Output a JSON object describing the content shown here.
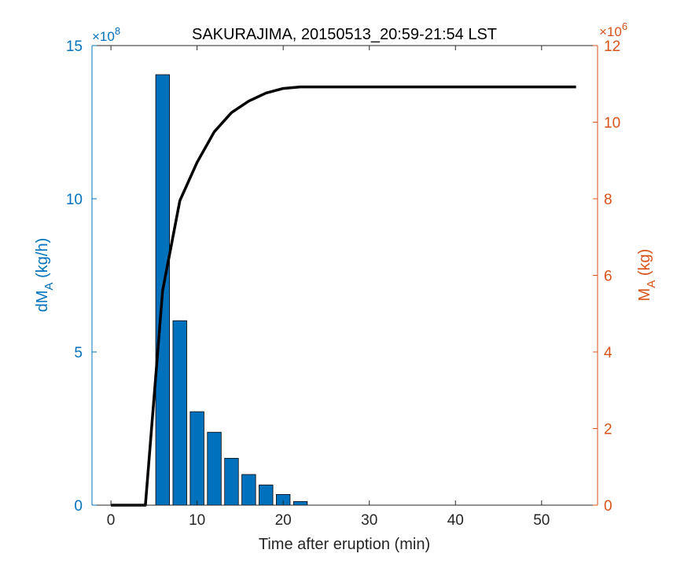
{
  "chart_data": {
    "type": "bar",
    "title": "SAKURAJIMA, 20150513_20:59-21:54 LST",
    "xlabel": "Time after eruption (min)",
    "ylabel_left": {
      "main": "dM",
      "sub": "A",
      "unit": " (kg/h)"
    },
    "ylabel_right": {
      "main": "M",
      "sub": "A",
      "unit": " (kg)"
    },
    "left_exponent": {
      "prefix": "×10",
      "power": "8"
    },
    "right_exponent": {
      "prefix": "×10",
      "power": "6"
    },
    "xlim": [
      -2.2,
      56.5
    ],
    "ylim_left": [
      0,
      15
    ],
    "ylim_right": [
      0,
      12
    ],
    "xticks": [
      0,
      10,
      20,
      30,
      40,
      50
    ],
    "yticks_left": [
      0,
      5,
      10,
      15
    ],
    "yticks_right": [
      0,
      2,
      4,
      6,
      8,
      10,
      12
    ],
    "left_color": "#0072BD",
    "right_color": "#D95319",
    "bar_color": "#0072BD",
    "line_color": "#000000",
    "bar_width": 1.6,
    "bars": {
      "name": "dM_A",
      "x": [
        6,
        8,
        10,
        12,
        14,
        16,
        18,
        20,
        22
      ],
      "values": [
        14.05,
        6.02,
        3.05,
        2.38,
        1.53,
        1.0,
        0.66,
        0.35,
        0.12
      ]
    },
    "line": {
      "name": "M_A",
      "x": [
        0,
        2,
        4,
        6,
        8,
        10,
        12,
        14,
        16,
        18,
        20,
        22,
        24,
        26,
        28,
        30,
        32,
        34,
        36,
        38,
        40,
        42,
        44,
        46,
        48,
        50,
        52,
        54
      ],
      "values": [
        0,
        0,
        0,
        5.6,
        7.95,
        8.95,
        9.75,
        10.25,
        10.55,
        10.76,
        10.88,
        10.92,
        10.92,
        10.92,
        10.92,
        10.92,
        10.92,
        10.92,
        10.92,
        10.92,
        10.92,
        10.92,
        10.92,
        10.92,
        10.92,
        10.92,
        10.92,
        10.92
      ]
    }
  }
}
